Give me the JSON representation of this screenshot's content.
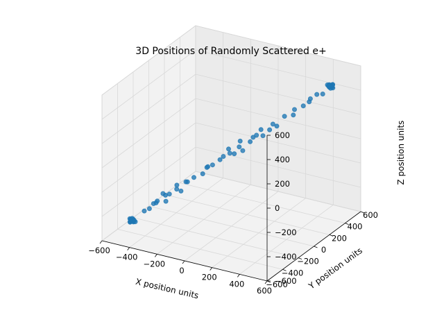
{
  "chart_data": {
    "type": "scatter",
    "title": "3D Positions of Randomly Scattered e+",
    "xlabel": "X position units",
    "ylabel": "Y position units",
    "zlabel": "Z position units",
    "xlim": [
      -600,
      600
    ],
    "ylim": [
      -600,
      600
    ],
    "zlim": [
      -600,
      600
    ],
    "xticks": [
      -600,
      -400,
      -200,
      0,
      200,
      400,
      600
    ],
    "yticks": [
      -600,
      -400,
      -200,
      0,
      200,
      400,
      600
    ],
    "zticks": [
      -600,
      -400,
      -200,
      0,
      200,
      400,
      600
    ],
    "xtick_labels": [
      "−600",
      "−400",
      "−200",
      "0",
      "200",
      "400",
      "600"
    ],
    "ytick_labels": [
      "−600",
      "−400",
      "−200",
      "0",
      "200",
      "400",
      "600"
    ],
    "ztick_labels": [
      "−600",
      "−400",
      "−200",
      "0",
      "200",
      "400",
      "600"
    ],
    "grid": true,
    "color": "#1f77b4",
    "points": [
      [
        -460,
        -460,
        -460
      ],
      [
        -465,
        -455,
        -470
      ],
      [
        -455,
        -465,
        -450
      ],
      [
        -470,
        -460,
        -455
      ],
      [
        -450,
        -450,
        -465
      ],
      [
        -462,
        -470,
        -462
      ],
      [
        -458,
        -448,
        -458
      ],
      [
        -468,
        -462,
        -468
      ],
      [
        -452,
        -458,
        -472
      ],
      [
        -475,
        -452,
        -460
      ],
      [
        -445,
        -466,
        -455
      ],
      [
        -463,
        -444,
        -466
      ],
      [
        -470,
        -470,
        -470
      ],
      [
        -455,
        -455,
        -455
      ],
      [
        -448,
        -468,
        -462
      ],
      [
        -466,
        -450,
        -450
      ],
      [
        -472,
        -466,
        -476
      ],
      [
        -460,
        -475,
        -458
      ],
      [
        -440,
        -455,
        -468
      ],
      [
        -478,
        -458,
        -452
      ],
      [
        -380,
        -380,
        -380
      ],
      [
        -340,
        -350,
        -320
      ],
      [
        -300,
        -310,
        -330
      ],
      [
        -360,
        -330,
        -350
      ],
      [
        -280,
        -300,
        -270
      ],
      [
        -320,
        -280,
        -300
      ],
      [
        -250,
        -260,
        -240
      ],
      [
        -310,
        -330,
        -260
      ],
      [
        -230,
        -240,
        -260
      ],
      [
        -200,
        -210,
        -190
      ],
      [
        -260,
        -240,
        -220
      ],
      [
        -170,
        -180,
        -160
      ],
      [
        -140,
        -120,
        -150
      ],
      [
        -110,
        -120,
        -90
      ],
      [
        -80,
        -100,
        -70
      ],
      [
        -60,
        -40,
        -50
      ],
      [
        -30,
        -50,
        -10
      ],
      [
        0,
        -20,
        10
      ],
      [
        10,
        20,
        -10
      ],
      [
        40,
        30,
        50
      ],
      [
        -20,
        0,
        30
      ],
      [
        60,
        40,
        20
      ],
      [
        80,
        100,
        70
      ],
      [
        30,
        60,
        80
      ],
      [
        120,
        110,
        130
      ],
      [
        90,
        120,
        100
      ],
      [
        150,
        140,
        120
      ],
      [
        130,
        150,
        160
      ],
      [
        170,
        190,
        150
      ],
      [
        200,
        180,
        210
      ],
      [
        250,
        240,
        260
      ],
      [
        300,
        280,
        310
      ],
      [
        280,
        300,
        250
      ],
      [
        330,
        340,
        320
      ],
      [
        370,
        360,
        380
      ],
      [
        350,
        380,
        340
      ],
      [
        400,
        390,
        410
      ],
      [
        420,
        430,
        400
      ],
      [
        -400,
        -410,
        -390
      ],
      [
        -200,
        -230,
        -180
      ],
      [
        -350,
        -380,
        -330
      ],
      [
        -120,
        -90,
        -100
      ],
      [
        200,
        230,
        170
      ],
      [
        460,
        460,
        460
      ],
      [
        465,
        455,
        470
      ],
      [
        455,
        465,
        450
      ],
      [
        470,
        460,
        455
      ],
      [
        450,
        450,
        465
      ],
      [
        462,
        470,
        462
      ],
      [
        458,
        448,
        458
      ],
      [
        468,
        462,
        468
      ],
      [
        452,
        458,
        472
      ],
      [
        475,
        452,
        460
      ],
      [
        445,
        466,
        455
      ],
      [
        463,
        444,
        466
      ],
      [
        470,
        470,
        470
      ],
      [
        455,
        455,
        455
      ],
      [
        448,
        468,
        462
      ],
      [
        466,
        450,
        450
      ],
      [
        472,
        466,
        476
      ],
      [
        460,
        475,
        458
      ],
      [
        440,
        455,
        468
      ],
      [
        478,
        458,
        452
      ]
    ]
  }
}
